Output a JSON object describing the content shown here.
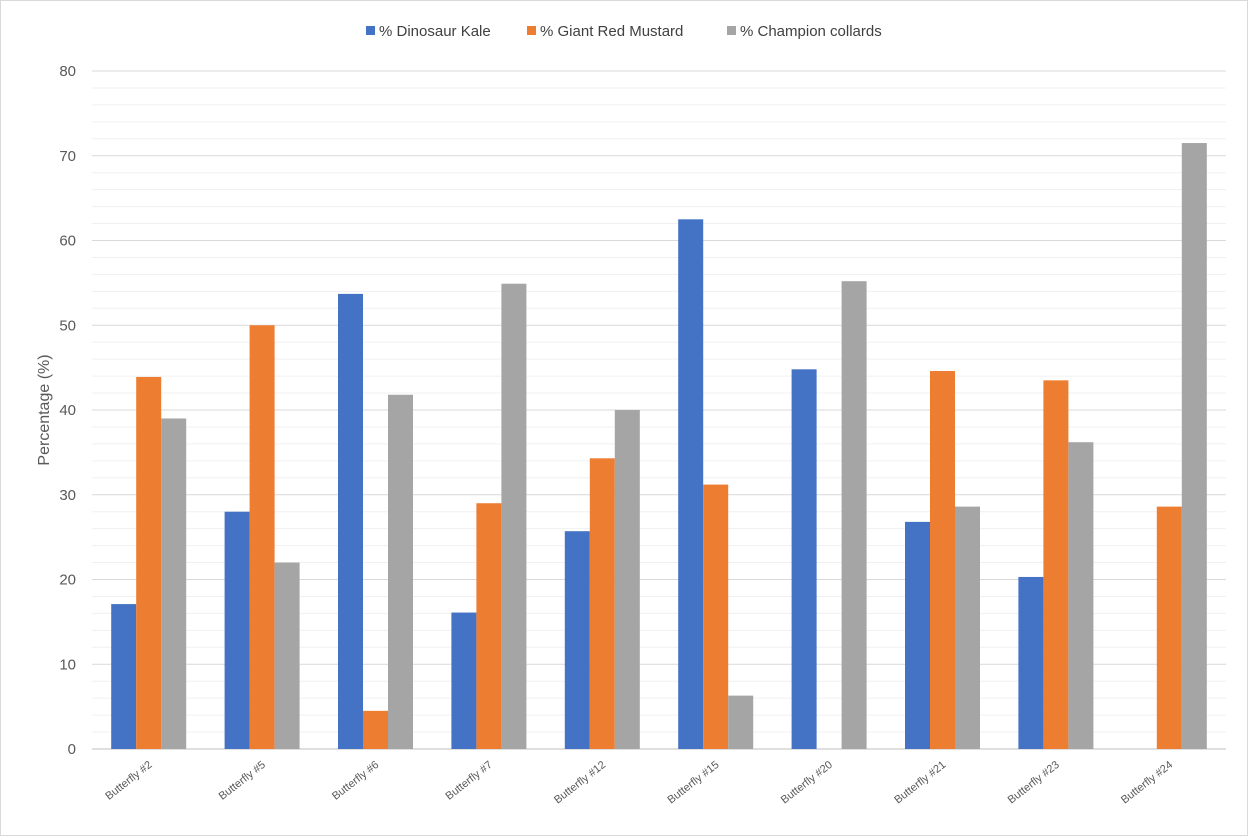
{
  "chart_data": {
    "type": "bar",
    "title": "",
    "xlabel": "",
    "ylabel": "Percentage (%)",
    "ylim": [
      0,
      80
    ],
    "y_ticks": [
      0,
      10,
      20,
      30,
      40,
      50,
      60,
      70,
      80
    ],
    "minor_gridlines": true,
    "legend_position": "top",
    "categories": [
      "Butterfly #2",
      "Butterfly #5",
      "Butterfly #6",
      "Butterfly #7",
      "Butterfly #12",
      "Butterfly #15",
      "Butterfly #20",
      "Butterfly #21",
      "Butterfly #23",
      "Butterfly #24"
    ],
    "series": [
      {
        "name": "% Dinosaur Kale",
        "color": "#4472c4",
        "values": [
          17.1,
          28.0,
          53.7,
          16.1,
          25.7,
          62.5,
          44.8,
          26.8,
          20.3,
          0
        ]
      },
      {
        "name": "% Giant Red Mustard",
        "color": "#ed7d31",
        "values": [
          43.9,
          50.0,
          4.5,
          29.0,
          34.3,
          31.2,
          0,
          44.6,
          43.5,
          28.6
        ]
      },
      {
        "name": "% Champion collards",
        "color": "#a5a5a5",
        "values": [
          39.0,
          22.0,
          41.8,
          54.9,
          40.0,
          6.3,
          55.2,
          28.6,
          36.2,
          71.5
        ]
      }
    ]
  }
}
